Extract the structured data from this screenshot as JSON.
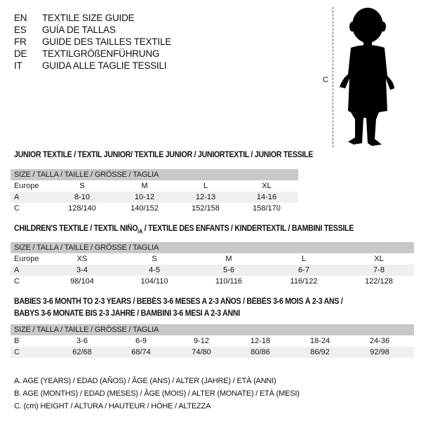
{
  "languages": [
    {
      "code": "EN",
      "text": "TEXTILE SIZE GUIDE"
    },
    {
      "code": "ES",
      "text": "GUÍA DE TALLAS"
    },
    {
      "code": "FR",
      "text": "GUIDE DES TAILLES TEXTILE"
    },
    {
      "code": "DE",
      "text": "TEXTILGRÖßENFÜHRUNG"
    },
    {
      "code": "IT",
      "text": "GUIDA ALLE TAGLIE TESSILI"
    }
  ],
  "figure": {
    "measure_label": "C"
  },
  "size_header": "SIZE / TALLA / TAILLE / GRÖSSE / TAGLIA",
  "junior": {
    "title": "JUNIOR TEXTILE / TEXTIL JUNIOR/ TEXTILE JUNIOR / JUNIORTEXTIL / JUNIOR TESSILE",
    "rows": [
      {
        "label": "Europe",
        "cells": [
          "S",
          "M",
          "L",
          "XL"
        ]
      },
      {
        "label": "A",
        "cells": [
          "8-10",
          "10-12",
          "12-13",
          "14-16"
        ]
      },
      {
        "label": "C",
        "cells": [
          "128/140",
          "140/152",
          "152/158",
          "158/170"
        ]
      }
    ]
  },
  "children": {
    "title": "CHILDREN'S TEXTILE / TEXTIL NIÑO/A / TEXTILE DES ENFANTS / KINDERTEXTIL / BAMBINI TESSILE",
    "rows": [
      {
        "label": "Europe",
        "cells": [
          "XS",
          "S",
          "M",
          "L",
          "XL"
        ]
      },
      {
        "label": "A",
        "cells": [
          "3-4",
          "4-5",
          "5-6",
          "6-7",
          "7-8"
        ]
      },
      {
        "label": "C",
        "cells": [
          "98/104",
          "104/110",
          "110/116",
          "116/122",
          "122/128"
        ]
      }
    ]
  },
  "babies": {
    "title_line1": "BABIES 3-6 MONTH TO 2-3 YEARS / BEBÉS 3-6 MESES A 2-3 AÑOS / BÉBÉS 3-6 MOIS À 2-3 ANS /",
    "title_line2": "BABYS 3-6 MONATE BIS 2-3 JAHRE / BAMBINI 3-6 MESI A 2-3 ANNI",
    "rows": [
      {
        "label": "B",
        "cells": [
          "3-6",
          "6-9",
          "9-12",
          "12-18",
          "18-24",
          "24-36"
        ]
      },
      {
        "label": "C",
        "cells": [
          "62/68",
          "68/74",
          "74/80",
          "80/86",
          "86/92",
          "92/98"
        ]
      }
    ]
  },
  "legend": [
    "A. AGE (YEARS) / EDAD (AÑOS) / ÂGE (ANS) / ALTER (JAHRE) / ETÀ (ANNI)",
    "B. AGE (MONTHS) / EDAD (MESES) / ÂGE (MOIS) / ALTER (MONATE) / ETÀ (MESI)",
    "C. (cm) HEIGHT / ALTURA / HAUTEUR / HÖHE / ALTEZZA"
  ]
}
